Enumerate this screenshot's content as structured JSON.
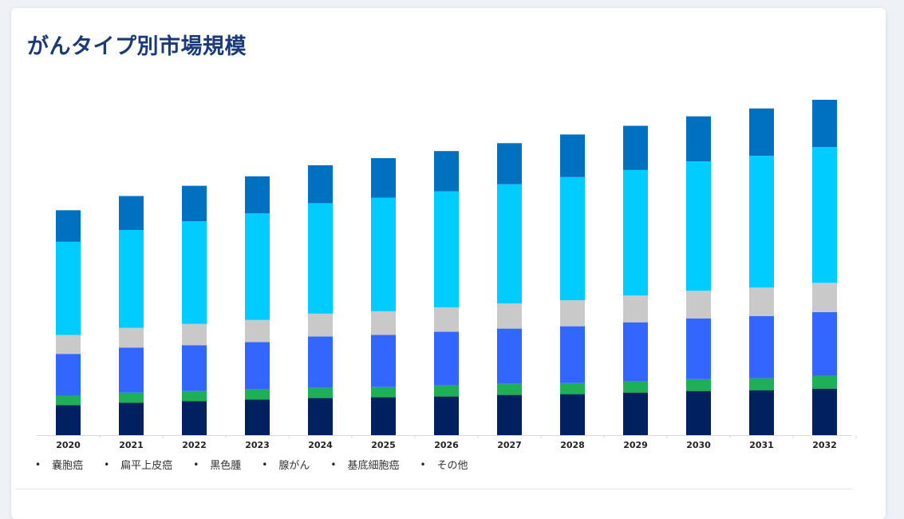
{
  "header": {
    "title": "がんタイプ別市場規模"
  },
  "chart_data": {
    "type": "bar",
    "stacked": true,
    "title": "がんタイプ別市場規模",
    "categories": [
      "2020",
      "2021",
      "2022",
      "2023",
      "2024",
      "2025",
      "2026",
      "2027",
      "2028",
      "2029",
      "2030",
      "2031",
      "2032"
    ],
    "ylim": [
      0,
      430
    ],
    "grid": false,
    "legend_position": "bottom-left",
    "series": [
      {
        "name": "嚢胞癌",
        "color": "#002060",
        "values": [
          38,
          41,
          43,
          45,
          47,
          48,
          49,
          51,
          52,
          54,
          56,
          57,
          59
        ]
      },
      {
        "name": "扁平上皮癌",
        "color": "#1db056",
        "values": [
          12,
          13,
          13,
          13,
          13,
          13,
          14,
          14,
          14,
          14,
          15,
          15,
          16
        ]
      },
      {
        "name": "黒色腫",
        "color": "#3366ff",
        "values": [
          53,
          57,
          58,
          60,
          65,
          66,
          68,
          70,
          72,
          75,
          77,
          79,
          81
        ]
      },
      {
        "name": "腺がん",
        "color": "#c9c9c9",
        "values": [
          24,
          25,
          27,
          28,
          29,
          30,
          31,
          32,
          33,
          34,
          35,
          36,
          37
        ]
      },
      {
        "name": "基底細胞癌",
        "color": "#00ccff",
        "values": [
          118,
          124,
          130,
          135,
          140,
          144,
          147,
          151,
          156,
          159,
          164,
          167,
          172
        ]
      },
      {
        "name": "その他",
        "color": "#0070c0",
        "values": [
          40,
          43,
          45,
          47,
          48,
          50,
          51,
          52,
          54,
          56,
          57,
          60,
          60
        ]
      }
    ]
  }
}
